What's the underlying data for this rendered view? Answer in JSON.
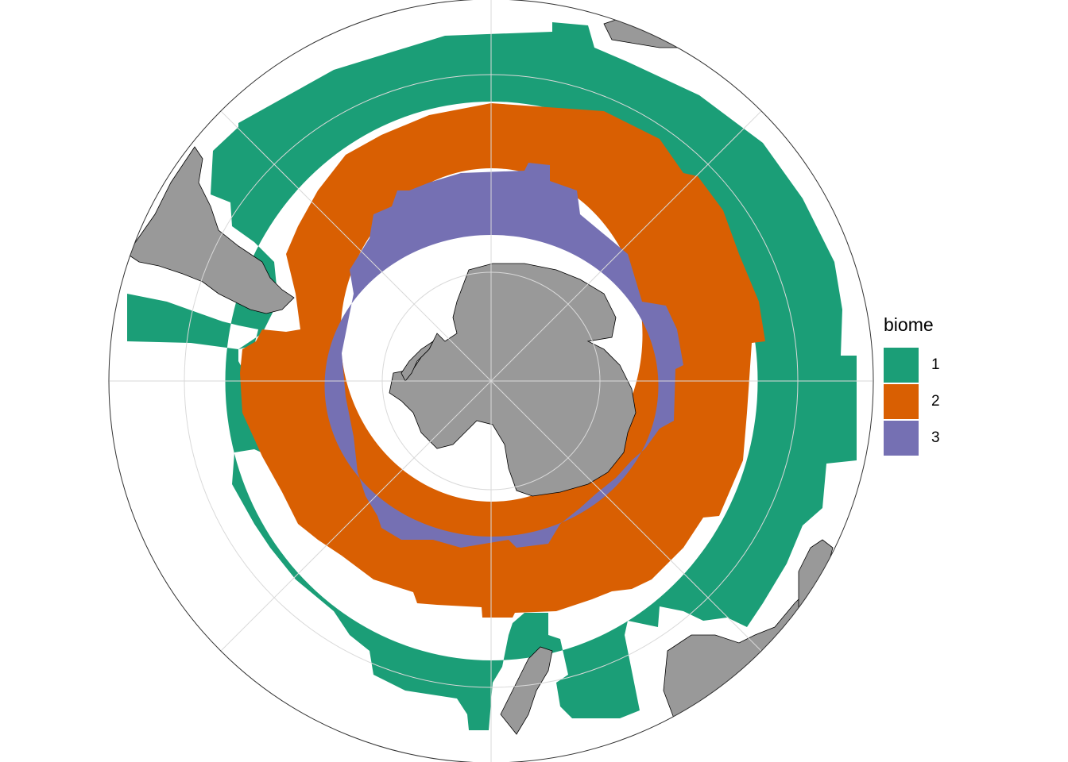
{
  "legend": {
    "title": "biome",
    "items": [
      {
        "label": "1",
        "color": "#1b9e77"
      },
      {
        "label": "2",
        "color": "#d95f02"
      },
      {
        "label": "3",
        "color": "#7570b3"
      }
    ]
  },
  "colors": {
    "land": "#999999",
    "coast": "#000000",
    "graticule": "#d9d9d9",
    "frame": "#333333",
    "background": "#ffffff"
  },
  "map": {
    "projection": "south-polar-stereographic",
    "graticule": true
  }
}
